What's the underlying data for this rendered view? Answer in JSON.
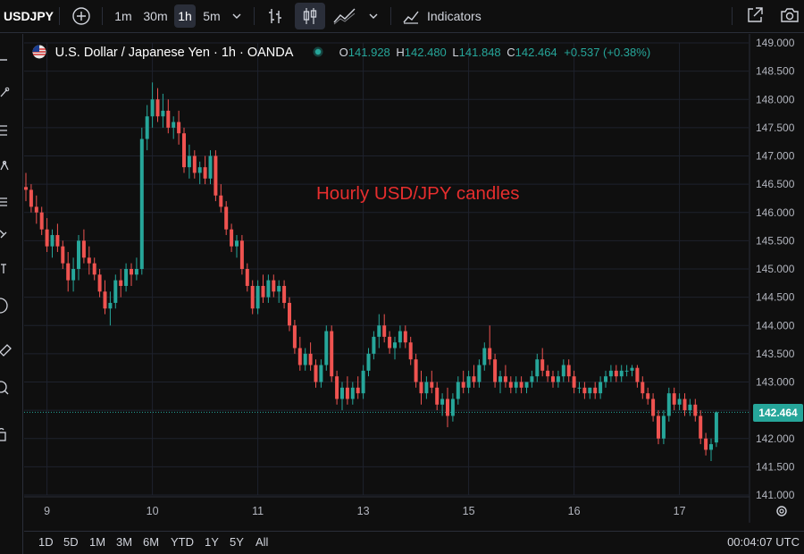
{
  "toolbar": {
    "symbol": "USDJPY",
    "intervals": [
      "1m",
      "30m",
      "1h",
      "5m"
    ],
    "active_interval": "1h",
    "indicators_label": "Indicators"
  },
  "legend": {
    "title": "U.S. Dollar / Japanese Yen · 1h · OANDA",
    "o_label": "O",
    "o_value": "141.928",
    "h_label": "H",
    "h_value": "142.480",
    "l_label": "L",
    "l_value": "141.848",
    "c_label": "C",
    "c_value": "142.464",
    "change": "+0.537 (+0.38%)"
  },
  "annotation": "Hourly USD/JPY candles",
  "last_price": "142.464",
  "ranges": [
    "1D",
    "5D",
    "1M",
    "3M",
    "6M",
    "YTD",
    "1Y",
    "5Y",
    "All"
  ],
  "clock": "00:04:07 UTC",
  "colors": {
    "up": "#26a69a",
    "down": "#ef5350",
    "background": "#0f0f0f",
    "grid": "#1e222d",
    "annotation": "#e62e2e"
  },
  "icons": [
    "add-symbol-icon",
    "bar-style-icon",
    "candle-style-icon",
    "area-style-icon",
    "chevron-down-icon",
    "indicators-icon",
    "fullscreen-icon",
    "snapshot-icon",
    "cursor-icon",
    "trendline-icon",
    "fib-icon",
    "pattern-icon",
    "brush-icon",
    "shapes-icon",
    "ruler-icon",
    "zoom-icon",
    "lock-icon",
    "settings-icon"
  ],
  "chart_data": {
    "type": "candlestick",
    "y_ticks": [
      "149.000",
      "148.500",
      "148.000",
      "147.500",
      "147.000",
      "146.500",
      "146.000",
      "145.500",
      "145.000",
      "144.500",
      "144.000",
      "143.500",
      "143.000",
      "142.500",
      "142.000",
      "141.500",
      "141.000"
    ],
    "ylim": [
      141.0,
      149.0
    ],
    "x_ticks": [
      "9",
      "10",
      "11",
      "13",
      "15",
      "16",
      "17"
    ],
    "x_tick_index": [
      4,
      24,
      44,
      64,
      84,
      104,
      124
    ],
    "last_close": 142.464,
    "candles": [
      [
        146.45,
        146.7,
        146.2,
        146.4
      ],
      [
        146.4,
        146.5,
        146.0,
        146.1
      ],
      [
        146.1,
        146.3,
        145.8,
        146.0
      ],
      [
        146.0,
        146.1,
        145.6,
        145.7
      ],
      [
        145.7,
        145.9,
        145.3,
        145.4
      ],
      [
        145.4,
        145.7,
        145.2,
        145.6
      ],
      [
        145.6,
        145.8,
        145.3,
        145.4
      ],
      [
        145.4,
        145.5,
        145.0,
        145.1
      ],
      [
        145.1,
        145.3,
        144.6,
        144.8
      ],
      [
        144.8,
        145.2,
        144.6,
        145.0
      ],
      [
        145.0,
        145.6,
        144.8,
        145.5
      ],
      [
        145.5,
        145.7,
        145.1,
        145.2
      ],
      [
        145.2,
        145.4,
        144.9,
        145.1
      ],
      [
        145.1,
        145.2,
        144.8,
        144.9
      ],
      [
        144.9,
        145.0,
        144.5,
        144.6
      ],
      [
        144.6,
        144.8,
        144.2,
        144.3
      ],
      [
        144.3,
        144.6,
        144.0,
        144.4
      ],
      [
        144.4,
        144.9,
        144.3,
        144.8
      ],
      [
        144.8,
        145.0,
        144.5,
        144.7
      ],
      [
        144.7,
        145.1,
        144.6,
        145.0
      ],
      [
        145.0,
        145.1,
        144.7,
        144.9
      ],
      [
        144.9,
        145.2,
        144.8,
        145.0
      ],
      [
        145.0,
        147.5,
        144.9,
        147.3
      ],
      [
        147.3,
        147.9,
        147.1,
        147.7
      ],
      [
        147.7,
        148.3,
        147.5,
        148.0
      ],
      [
        148.0,
        148.2,
        147.6,
        147.7
      ],
      [
        147.7,
        148.1,
        147.5,
        147.8
      ],
      [
        147.8,
        148.0,
        147.4,
        147.5
      ],
      [
        147.5,
        147.7,
        147.3,
        147.6
      ],
      [
        147.6,
        147.8,
        147.2,
        147.4
      ],
      [
        147.4,
        147.5,
        146.7,
        146.8
      ],
      [
        146.8,
        147.2,
        146.6,
        147.0
      ],
      [
        147.0,
        147.1,
        146.6,
        146.7
      ],
      [
        146.7,
        146.9,
        146.5,
        146.8
      ],
      [
        146.8,
        147.0,
        146.5,
        146.6
      ],
      [
        146.6,
        147.1,
        146.5,
        147.0
      ],
      [
        147.0,
        147.1,
        146.2,
        146.3
      ],
      [
        146.3,
        146.5,
        146.0,
        146.1
      ],
      [
        146.1,
        146.2,
        145.6,
        145.7
      ],
      [
        145.7,
        145.8,
        145.3,
        145.4
      ],
      [
        145.4,
        145.6,
        145.2,
        145.5
      ],
      [
        145.5,
        145.6,
        144.9,
        145.0
      ],
      [
        145.0,
        145.1,
        144.6,
        144.7
      ],
      [
        144.7,
        144.8,
        144.2,
        144.3
      ],
      [
        144.3,
        144.8,
        144.2,
        144.7
      ],
      [
        144.7,
        144.9,
        144.4,
        144.5
      ],
      [
        144.5,
        144.9,
        144.4,
        144.8
      ],
      [
        144.8,
        144.9,
        144.5,
        144.6
      ],
      [
        144.6,
        144.8,
        144.4,
        144.7
      ],
      [
        144.7,
        144.8,
        144.3,
        144.4
      ],
      [
        144.4,
        144.5,
        143.9,
        144.0
      ],
      [
        144.0,
        144.1,
        143.5,
        143.6
      ],
      [
        143.6,
        143.8,
        143.2,
        143.3
      ],
      [
        143.3,
        143.6,
        143.2,
        143.5
      ],
      [
        143.5,
        143.7,
        143.2,
        143.3
      ],
      [
        143.3,
        143.4,
        142.9,
        143.0
      ],
      [
        143.0,
        143.4,
        142.9,
        143.3
      ],
      [
        143.3,
        144.0,
        143.2,
        143.9
      ],
      [
        143.9,
        144.0,
        143.0,
        143.1
      ],
      [
        143.1,
        143.2,
        142.6,
        142.7
      ],
      [
        142.7,
        143.0,
        142.5,
        142.9
      ],
      [
        142.9,
        143.1,
        142.6,
        142.7
      ],
      [
        142.7,
        143.0,
        142.6,
        142.9
      ],
      [
        142.9,
        143.1,
        142.7,
        142.8
      ],
      [
        142.8,
        143.3,
        142.7,
        143.2
      ],
      [
        143.2,
        143.6,
        143.1,
        143.5
      ],
      [
        143.5,
        143.9,
        143.4,
        143.8
      ],
      [
        143.8,
        144.2,
        143.6,
        144.0
      ],
      [
        144.0,
        144.2,
        143.7,
        143.8
      ],
      [
        143.8,
        143.9,
        143.5,
        143.6
      ],
      [
        143.6,
        143.8,
        143.4,
        143.7
      ],
      [
        143.7,
        144.0,
        143.6,
        143.9
      ],
      [
        143.9,
        144.0,
        143.6,
        143.7
      ],
      [
        143.7,
        143.8,
        143.3,
        143.4
      ],
      [
        143.4,
        143.5,
        142.9,
        143.0
      ],
      [
        143.0,
        143.2,
        142.6,
        142.8
      ],
      [
        142.8,
        143.1,
        142.7,
        143.0
      ],
      [
        143.0,
        143.2,
        142.8,
        142.9
      ],
      [
        142.9,
        143.0,
        142.5,
        142.6
      ],
      [
        142.6,
        142.8,
        142.4,
        142.7
      ],
      [
        142.7,
        142.9,
        142.2,
        142.4
      ],
      [
        142.4,
        142.8,
        142.3,
        142.7
      ],
      [
        142.7,
        143.1,
        142.6,
        143.0
      ],
      [
        143.0,
        143.2,
        142.8,
        142.9
      ],
      [
        142.9,
        143.2,
        142.8,
        143.1
      ],
      [
        143.1,
        143.3,
        142.9,
        143.0
      ],
      [
        143.0,
        143.4,
        142.9,
        143.3
      ],
      [
        143.3,
        143.7,
        143.2,
        143.6
      ],
      [
        143.6,
        144.0,
        143.3,
        143.4
      ],
      [
        143.4,
        143.5,
        142.9,
        143.0
      ],
      [
        143.0,
        143.2,
        142.8,
        143.1
      ],
      [
        143.1,
        143.3,
        142.9,
        143.0
      ],
      [
        143.0,
        143.1,
        142.8,
        142.9
      ],
      [
        142.9,
        143.1,
        142.8,
        143.0
      ],
      [
        143.0,
        143.1,
        142.8,
        142.9
      ],
      [
        142.9,
        143.0,
        142.8,
        143.0
      ],
      [
        143.0,
        143.2,
        142.9,
        143.1
      ],
      [
        143.1,
        143.5,
        143.0,
        143.4
      ],
      [
        143.4,
        143.6,
        143.1,
        143.2
      ],
      [
        143.2,
        143.3,
        143.0,
        143.1
      ],
      [
        143.1,
        143.2,
        142.9,
        143.0
      ],
      [
        143.0,
        143.2,
        142.9,
        143.1
      ],
      [
        143.1,
        143.4,
        143.0,
        143.3
      ],
      [
        143.3,
        143.4,
        143.0,
        143.1
      ],
      [
        143.1,
        143.2,
        142.8,
        142.9
      ],
      [
        142.9,
        143.0,
        142.8,
        142.9
      ],
      [
        142.9,
        143.0,
        142.7,
        142.8
      ],
      [
        142.8,
        142.9,
        142.7,
        142.9
      ],
      [
        142.9,
        143.0,
        142.7,
        142.8
      ],
      [
        142.8,
        143.1,
        142.7,
        143.0
      ],
      [
        143.0,
        143.2,
        142.9,
        143.1
      ],
      [
        143.1,
        143.3,
        143.0,
        143.2
      ],
      [
        143.2,
        143.3,
        143.0,
        143.1
      ],
      [
        143.1,
        143.3,
        143.0,
        143.2
      ],
      [
        143.2,
        143.3,
        143.1,
        143.2
      ],
      [
        143.2,
        143.3,
        143.1,
        143.25
      ],
      [
        143.25,
        143.3,
        142.9,
        143.0
      ],
      [
        143.0,
        143.1,
        142.7,
        142.8
      ],
      [
        142.8,
        142.9,
        142.6,
        142.7
      ],
      [
        142.7,
        142.8,
        142.3,
        142.4
      ],
      [
        142.4,
        142.5,
        141.9,
        142.0
      ],
      [
        142.0,
        142.5,
        141.9,
        142.4
      ],
      [
        142.4,
        142.9,
        142.3,
        142.8
      ],
      [
        142.8,
        142.9,
        142.5,
        142.6
      ],
      [
        142.6,
        142.8,
        142.5,
        142.7
      ],
      [
        142.7,
        142.8,
        142.4,
        142.5
      ],
      [
        142.5,
        142.7,
        142.4,
        142.6
      ],
      [
        142.6,
        142.7,
        142.3,
        142.4
      ],
      [
        142.4,
        142.5,
        141.9,
        142.0
      ],
      [
        142.0,
        142.1,
        141.7,
        141.8
      ],
      [
        141.8,
        142.0,
        141.6,
        141.9
      ],
      [
        141.93,
        142.48,
        141.85,
        142.464
      ]
    ]
  }
}
